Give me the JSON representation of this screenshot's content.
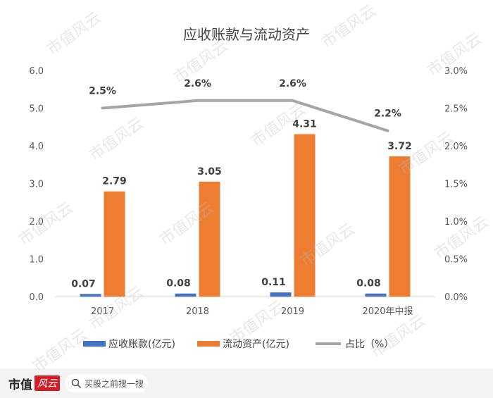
{
  "chart_data": {
    "type": "bar",
    "title": "应收账款与流动资产",
    "categories": [
      "2017",
      "2018",
      "2019",
      "2020年中报"
    ],
    "series": [
      {
        "name": "应收账款(亿元)",
        "type": "bar",
        "axis": "left",
        "color": "#4472C4",
        "values": [
          0.07,
          0.08,
          0.11,
          0.08
        ],
        "labels": [
          "0.07",
          "0.08",
          "0.11",
          "0.08"
        ]
      },
      {
        "name": "流动资产(亿元)",
        "type": "bar",
        "axis": "left",
        "color": "#ED7D31",
        "values": [
          2.79,
          3.05,
          4.31,
          3.72
        ],
        "labels": [
          "2.79",
          "3.05",
          "4.31",
          "3.72"
        ]
      },
      {
        "name": "占比（%）",
        "type": "line",
        "axis": "right",
        "color": "#A5A5A5",
        "values": [
          2.5,
          2.6,
          2.6,
          2.2
        ],
        "labels": [
          "2.5%",
          "2.6%",
          "2.6%",
          "2.2%"
        ]
      }
    ],
    "y_left": {
      "min": 0,
      "max": 6,
      "ticks": [
        "0.0",
        "1.0",
        "2.0",
        "3.0",
        "4.0",
        "5.0",
        "6.0"
      ]
    },
    "y_right": {
      "min": 0,
      "max": 3,
      "ticks": [
        "0.0%",
        "0.5%",
        "1.0%",
        "1.5%",
        "2.0%",
        "2.5%",
        "3.0%"
      ]
    },
    "legend_position": "bottom",
    "grid": false
  },
  "footer": {
    "brand": "市值",
    "brand_seal": "风云",
    "search_placeholder": "买股之前搜一搜"
  },
  "watermark": "市值风云"
}
